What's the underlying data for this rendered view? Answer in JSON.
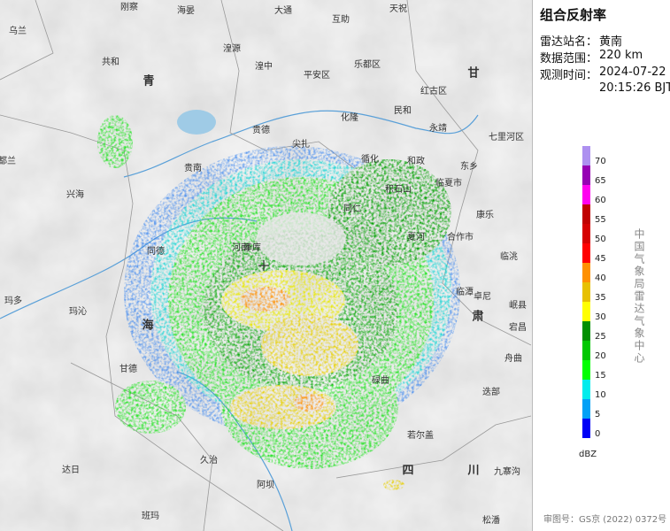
{
  "header": {
    "title": "组合反射率",
    "station_label": "雷达站名：",
    "station": "黄南",
    "range_label": "数据范围：",
    "range": "220 km",
    "time_label": "观测时间：",
    "date": "2024-07-22",
    "time": "20:15:26 BJT"
  },
  "legend": {
    "values": [
      0,
      5,
      10,
      15,
      20,
      25,
      30,
      35,
      40,
      45,
      50,
      55,
      60,
      65,
      70
    ],
    "colors": [
      "#0000f6",
      "#01a0f6",
      "#00ecec",
      "#01ff00",
      "#00c800",
      "#019000",
      "#ffff00",
      "#e7c000",
      "#ff9000",
      "#ff0000",
      "#d60000",
      "#c00000",
      "#ff00f0",
      "#9600b4",
      "#ad90f0"
    ],
    "unit": "dBZ",
    "organization": "中国气象局雷达气象中心"
  },
  "map": {
    "labels": [
      "乌兰",
      "刚察",
      "海晏",
      "大通",
      "互助",
      "天祝",
      "共和",
      "湟源",
      "湟中",
      "平安区",
      "乐都区",
      "红古区",
      "民和",
      "化隆",
      "永靖",
      "七里河区",
      "贵德",
      "尖扎",
      "循化",
      "东乡",
      "临夏市",
      "康乐",
      "和政",
      "积石山",
      "兴海",
      "贵南",
      "同仁",
      "同德",
      "泽库",
      "夏河",
      "合作市",
      "临潭",
      "卓尼",
      "玛多",
      "玛沁",
      "河南",
      "甘德",
      "碌曲",
      "迭部",
      "若尔盖",
      "久治",
      "达日",
      "班玛",
      "阿坝",
      "九寨沟",
      "松潘",
      "临洮",
      "岷县",
      "宕昌",
      "舟曲",
      "都兰",
      "青",
      "海",
      "甘",
      "肃",
      "四",
      "川"
    ]
  },
  "footer": "审图号：GS京 (2022) 0372号"
}
